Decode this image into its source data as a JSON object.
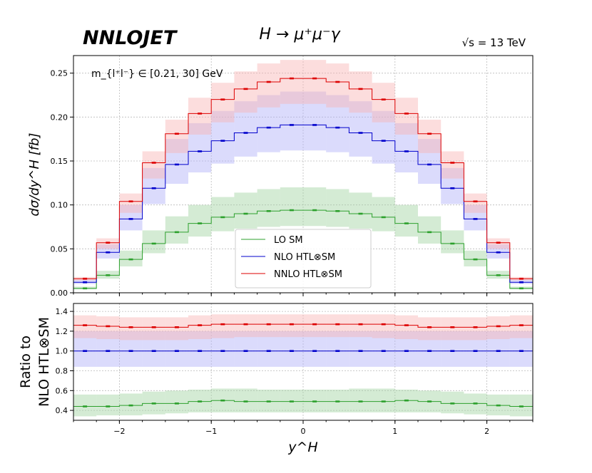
{
  "header": {
    "logo": "NNLOJET",
    "process": "H → μ⁺μ⁻γ",
    "energy": "√s = 13 TeV"
  },
  "chart_data": [
    {
      "type": "histogram",
      "panel": "main",
      "annotation": "m_{l⁺l⁻} ∈ [0.21, 30] GeV",
      "ylabel": "dσ/dy^H [fb]",
      "xlim": [
        -2.5,
        2.5
      ],
      "ylim": [
        0,
        0.27
      ],
      "yticks": [
        "0.00",
        "0.05",
        "0.10",
        "0.15",
        "0.20",
        "0.25"
      ],
      "grid": true,
      "legend_position": "lower-center",
      "bin_edges": [
        -2.5,
        -2.25,
        -2.0,
        -1.75,
        -1.5,
        -1.25,
        -1.0,
        -0.75,
        -0.5,
        -0.25,
        0.0,
        0.25,
        0.5,
        0.75,
        1.0,
        1.25,
        1.5,
        1.75,
        2.0,
        2.25,
        2.5
      ],
      "series": [
        {
          "name": "LO SM",
          "color": "#2ca02c",
          "band_color": "#9fd29f",
          "values": [
            0.005,
            0.02,
            0.038,
            0.056,
            0.069,
            0.079,
            0.086,
            0.09,
            0.093,
            0.094,
            0.094,
            0.093,
            0.09,
            0.086,
            0.079,
            0.069,
            0.056,
            0.038,
            0.02,
            0.005
          ],
          "lower": [
            0.004,
            0.016,
            0.03,
            0.045,
            0.056,
            0.064,
            0.07,
            0.073,
            0.075,
            0.076,
            0.076,
            0.075,
            0.073,
            0.07,
            0.064,
            0.056,
            0.045,
            0.03,
            0.016,
            0.004
          ],
          "upper": [
            0.007,
            0.025,
            0.048,
            0.071,
            0.087,
            0.1,
            0.109,
            0.114,
            0.118,
            0.12,
            0.12,
            0.118,
            0.114,
            0.109,
            0.1,
            0.087,
            0.071,
            0.048,
            0.025,
            0.007
          ]
        },
        {
          "name": "NLO HTL⊗SM",
          "color": "#0000cc",
          "band_color": "#b0b0f8",
          "values": [
            0.012,
            0.046,
            0.084,
            0.119,
            0.146,
            0.161,
            0.173,
            0.182,
            0.188,
            0.191,
            0.191,
            0.188,
            0.182,
            0.173,
            0.161,
            0.146,
            0.119,
            0.084,
            0.046,
            0.012
          ],
          "lower": [
            0.01,
            0.039,
            0.071,
            0.101,
            0.124,
            0.137,
            0.147,
            0.155,
            0.16,
            0.162,
            0.162,
            0.16,
            0.155,
            0.147,
            0.137,
            0.124,
            0.101,
            0.071,
            0.039,
            0.01
          ],
          "upper": [
            0.015,
            0.055,
            0.1,
            0.142,
            0.175,
            0.193,
            0.207,
            0.218,
            0.225,
            0.229,
            0.229,
            0.225,
            0.218,
            0.207,
            0.193,
            0.175,
            0.142,
            0.1,
            0.055,
            0.015
          ]
        },
        {
          "name": "NNLO HTL⊗SM",
          "color": "#dd0000",
          "band_color": "#f9b4b4",
          "values": [
            0.016,
            0.057,
            0.104,
            0.148,
            0.181,
            0.204,
            0.22,
            0.232,
            0.24,
            0.244,
            0.244,
            0.24,
            0.232,
            0.22,
            0.204,
            0.181,
            0.148,
            0.104,
            0.057,
            0.016
          ],
          "lower": [
            0.014,
            0.05,
            0.091,
            0.13,
            0.159,
            0.18,
            0.194,
            0.205,
            0.211,
            0.215,
            0.215,
            0.211,
            0.205,
            0.194,
            0.18,
            0.159,
            0.13,
            0.091,
            0.05,
            0.014
          ],
          "upper": [
            0.018,
            0.062,
            0.113,
            0.161,
            0.197,
            0.222,
            0.239,
            0.252,
            0.261,
            0.265,
            0.265,
            0.261,
            0.252,
            0.239,
            0.222,
            0.197,
            0.161,
            0.113,
            0.062,
            0.018
          ]
        }
      ]
    },
    {
      "type": "histogram",
      "panel": "ratio",
      "ylabel_line1": "Ratio to",
      "ylabel_line2": "NLO HTL⊗SM",
      "xlabel": "y^H",
      "xlim": [
        -2.5,
        2.5
      ],
      "ylim": [
        0.3,
        1.48
      ],
      "yticks": [
        "0.4",
        "0.6",
        "0.8",
        "1.0",
        "1.2",
        "1.4"
      ],
      "xticks": [
        "−2",
        "−1",
        "0",
        "1",
        "2"
      ],
      "grid": true,
      "series": [
        {
          "name": "LO SM",
          "color": "#2ca02c",
          "band_color": "#9fd29f",
          "values": [
            0.44,
            0.44,
            0.45,
            0.47,
            0.47,
            0.49,
            0.5,
            0.49,
            0.49,
            0.49,
            0.49,
            0.49,
            0.49,
            0.49,
            0.5,
            0.49,
            0.47,
            0.47,
            0.45,
            0.44
          ],
          "lower": [
            0.34,
            0.35,
            0.35,
            0.36,
            0.37,
            0.38,
            0.38,
            0.38,
            0.38,
            0.38,
            0.38,
            0.38,
            0.38,
            0.38,
            0.38,
            0.38,
            0.37,
            0.36,
            0.35,
            0.34
          ],
          "upper": [
            0.56,
            0.56,
            0.57,
            0.59,
            0.6,
            0.61,
            0.62,
            0.62,
            0.61,
            0.61,
            0.61,
            0.61,
            0.62,
            0.62,
            0.61,
            0.6,
            0.59,
            0.57,
            0.56,
            0.56
          ]
        },
        {
          "name": "NLO HTL⊗SM",
          "color": "#0000cc",
          "band_color": "#b0b0f8",
          "values": [
            1.0,
            1.0,
            1.0,
            1.0,
            1.0,
            1.0,
            1.0,
            1.0,
            1.0,
            1.0,
            1.0,
            1.0,
            1.0,
            1.0,
            1.0,
            1.0,
            1.0,
            1.0,
            1.0,
            1.0
          ],
          "lower": [
            0.84,
            0.84,
            0.84,
            0.84,
            0.84,
            0.84,
            0.84,
            0.84,
            0.84,
            0.84,
            0.84,
            0.84,
            0.84,
            0.84,
            0.84,
            0.84,
            0.84,
            0.84,
            0.84,
            0.84
          ],
          "upper": [
            1.2,
            1.2,
            1.2,
            1.2,
            1.2,
            1.2,
            1.2,
            1.2,
            1.2,
            1.2,
            1.2,
            1.2,
            1.2,
            1.2,
            1.2,
            1.2,
            1.2,
            1.2,
            1.2,
            1.2
          ]
        },
        {
          "name": "NNLO HTL⊗SM",
          "color": "#dd0000",
          "band_color": "#f9b4b4",
          "values": [
            1.26,
            1.25,
            1.24,
            1.24,
            1.24,
            1.26,
            1.27,
            1.27,
            1.27,
            1.27,
            1.27,
            1.27,
            1.27,
            1.27,
            1.26,
            1.24,
            1.24,
            1.24,
            1.25,
            1.26
          ],
          "lower": [
            1.13,
            1.12,
            1.11,
            1.11,
            1.11,
            1.12,
            1.13,
            1.14,
            1.14,
            1.14,
            1.14,
            1.14,
            1.14,
            1.13,
            1.12,
            1.11,
            1.11,
            1.11,
            1.12,
            1.13
          ],
          "upper": [
            1.36,
            1.35,
            1.34,
            1.34,
            1.34,
            1.36,
            1.37,
            1.37,
            1.37,
            1.37,
            1.37,
            1.37,
            1.37,
            1.37,
            1.36,
            1.34,
            1.34,
            1.34,
            1.35,
            1.36
          ]
        }
      ]
    }
  ]
}
